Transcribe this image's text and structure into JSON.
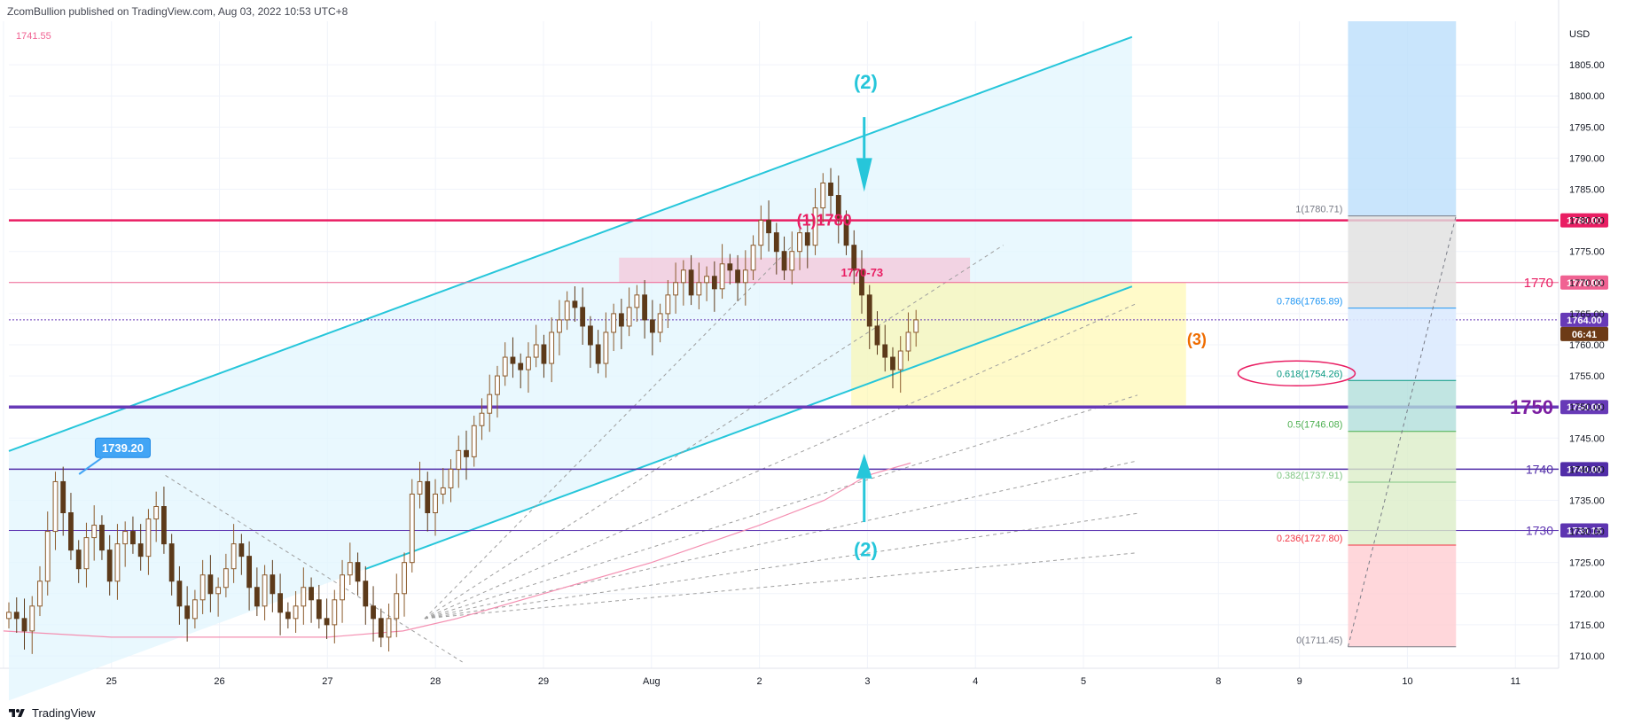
{
  "header": {
    "publisher": "ZcomBullion published on TradingView.com, Aug 03, 2022 10:53 UTC+8"
  },
  "footer": {
    "brand": "TradingView"
  },
  "colors": {
    "up": "#8b5a2b",
    "down": "#5c3a1a",
    "channel": "#26c6da",
    "magenta": "#e91e63",
    "purple": "#673ab7",
    "purple_dark": "#7b1fa2",
    "fib_blue": "#2962ff"
  },
  "chart_data": {
    "type": "candlestick",
    "symbol_unit": "USD",
    "top_left_value": "1741.55",
    "y_ticks": [
      1710,
      1715,
      1720,
      1725,
      1730,
      1735,
      1740,
      1745,
      1750,
      1755,
      1760,
      1765,
      1770,
      1775,
      1780,
      1785,
      1790,
      1795,
      1800,
      1805
    ],
    "ylim": [
      1708,
      1812
    ],
    "x_tick_labels": [
      {
        "t": 0.0,
        "label": ""
      },
      {
        "t": 1.0,
        "label": "25"
      },
      {
        "t": 2.0,
        "label": "26"
      },
      {
        "t": 3.0,
        "label": "27"
      },
      {
        "t": 4.0,
        "label": "28"
      },
      {
        "t": 5.0,
        "label": "29"
      },
      {
        "t": 6.0,
        "label": "Aug"
      },
      {
        "t": 7.0,
        "label": "2"
      },
      {
        "t": 8.0,
        "label": "3"
      },
      {
        "t": 9.0,
        "label": "4"
      },
      {
        "t": 10.0,
        "label": "5"
      },
      {
        "t": 11.25,
        "label": "8"
      },
      {
        "t": 12.0,
        "label": "9"
      },
      {
        "t": 13.0,
        "label": "10"
      },
      {
        "t": 14.0,
        "label": "11"
      }
    ],
    "xlim": [
      0.05,
      14.4
    ],
    "close_series": [
      1717,
      1716,
      1714,
      1718,
      1722,
      1730,
      1738,
      1733,
      1727,
      1724,
      1729,
      1731,
      1727,
      1722,
      1728,
      1730,
      1728,
      1726,
      1732,
      1734,
      1728,
      1722,
      1718,
      1716,
      1719,
      1723,
      1720,
      1721,
      1724,
      1728,
      1726,
      1721,
      1718,
      1723,
      1720,
      1717,
      1716,
      1718,
      1721,
      1719,
      1716,
      1715,
      1719,
      1723,
      1725,
      1722,
      1718,
      1716,
      1713,
      1716,
      1720,
      1725,
      1736,
      1738,
      1733,
      1736,
      1737,
      1740,
      1743,
      1742,
      1747,
      1749,
      1752,
      1755,
      1758,
      1757,
      1756,
      1758,
      1760,
      1757,
      1762,
      1764,
      1767,
      1766,
      1763,
      1760,
      1757,
      1762,
      1765,
      1763,
      1766,
      1768,
      1764,
      1762,
      1765,
      1768,
      1770,
      1772,
      1768,
      1770,
      1771,
      1769,
      1773,
      1772,
      1770,
      1772,
      1776,
      1780,
      1778,
      1775,
      1772,
      1775,
      1778,
      1776,
      1782,
      1786,
      1784,
      1780,
      1776,
      1772,
      1768,
      1763,
      1760,
      1758,
      1756,
      1759,
      1762,
      1764
    ],
    "sma_line": [
      [
        0.0,
        1714
      ],
      [
        1.0,
        1713
      ],
      [
        2.0,
        1713
      ],
      [
        3.0,
        1713
      ],
      [
        3.7,
        1714
      ],
      [
        4.2,
        1716
      ],
      [
        5.0,
        1720
      ],
      [
        6.0,
        1725
      ],
      [
        7.0,
        1731
      ],
      [
        7.6,
        1735
      ],
      [
        8.0,
        1739
      ],
      [
        8.4,
        1741
      ]
    ],
    "horizontal_levels": [
      {
        "value": 1780.0,
        "label": "1780.00",
        "color": "#e91e63",
        "width": 2.5
      },
      {
        "value": 1770.0,
        "label": "1770.00",
        "color": "#f06292",
        "width": 1
      },
      {
        "value": 1764.0,
        "label": "1764.00",
        "color": "#673ab7",
        "width": 1,
        "dotted": true
      },
      {
        "value": 1750.0,
        "label": "1750.00",
        "color": "#673ab7",
        "width": 3.5
      },
      {
        "value": 1740.0,
        "label": "1740.00",
        "color": "#512da8",
        "width": 1.5
      },
      {
        "value": 1730.15,
        "label": "1730.15",
        "color": "#5e35b1",
        "width": 1
      }
    ],
    "countdown_label": "06:41",
    "right_level_texts": [
      {
        "value": 1770.0,
        "text": "1770",
        "color": "#e91e63",
        "size": 15
      },
      {
        "value": 1750.0,
        "text": "1750",
        "color": "#7b1fa2",
        "size": 22
      },
      {
        "value": 1740.0,
        "text": "1740",
        "color": "#512da8",
        "size": 14
      },
      {
        "value": 1730.15,
        "text": "1730",
        "color": "#5e35b1",
        "size": 14
      }
    ],
    "fib_levels": [
      {
        "value": 1780.71,
        "text": "1(1780.71)",
        "color": "#787b86"
      },
      {
        "value": 1765.89,
        "text": "0.786(1765.89)",
        "color": "#2196f3"
      },
      {
        "value": 1754.26,
        "text": "0.618(1754.26)",
        "color": "#089981"
      },
      {
        "value": 1746.08,
        "text": "0.5(1746.08)",
        "color": "#4caf50"
      },
      {
        "value": 1737.91,
        "text": "0.382(1737.91)",
        "color": "#81c784"
      },
      {
        "value": 1727.8,
        "text": "0.236(1727.80)",
        "color": "#f23645"
      },
      {
        "value": 1711.45,
        "text": "0(1711.45)",
        "color": "#787b86"
      }
    ],
    "annotations": {
      "wave2_top": "(2)",
      "wave2_bottom": "(2)",
      "wave3": "(3)",
      "wave1": "(1)1780",
      "zone_label": "1770-73",
      "callout": "1739.20"
    }
  }
}
